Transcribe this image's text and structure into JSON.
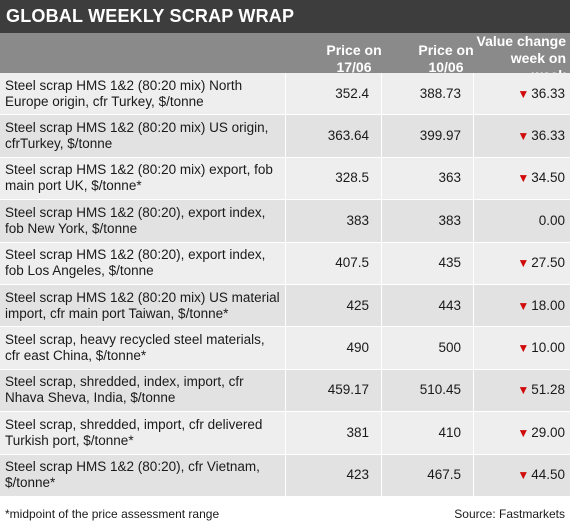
{
  "title": "GLOBAL WEEKLY SCRAP WRAP",
  "columns": {
    "price1": "Price on 17/06",
    "price2": "Price on 10/06",
    "change": "Value change week on week"
  },
  "rows": [
    {
      "desc": "Steel scrap HMS 1&2 (80:20 mix) North Europe origin, cfr Turkey, $/tonne",
      "p1": "352.4",
      "p2": "388.73",
      "change": "36.33",
      "down": true
    },
    {
      "desc": "Steel scrap HMS 1&2 (80:20 mix) US origin, cfrTurkey, $/tonne",
      "p1": "363.64",
      "p2": "399.97",
      "change": "36.33",
      "down": true
    },
    {
      "desc": "Steel scrap HMS 1&2 (80:20 mix) export, fob main port UK, $/tonne*",
      "p1": "328.5",
      "p2": "363",
      "change": "34.50",
      "down": true
    },
    {
      "desc": "Steel scrap HMS 1&2 (80:20), export index, fob New York, $/tonne",
      "p1": "383",
      "p2": "383",
      "change": "0.00",
      "down": false
    },
    {
      "desc": "Steel scrap HMS 1&2 (80:20), export index, fob Los Angeles, $/tonne",
      "p1": "407.5",
      "p2": "435",
      "change": "27.50",
      "down": true
    },
    {
      "desc": "Steel scrap HMS 1&2 (80:20 mix) US material import, cfr main port Taiwan, $/tonne*",
      "p1": "425",
      "p2": "443",
      "change": "18.00",
      "down": true
    },
    {
      "desc": "Steel scrap, heavy recycled steel materials, cfr east China, $/tonne*",
      "p1": "490",
      "p2": "500",
      "change": "10.00",
      "down": true
    },
    {
      "desc": "Steel scrap, shredded, index, import, cfr Nhava Sheva, India, $/tonne",
      "p1": "459.17",
      "p2": "510.45",
      "change": "51.28",
      "down": true
    },
    {
      "desc": "Steel scrap, shredded, import, cfr delivered Turkish port, $/tonne*",
      "p1": "381",
      "p2": "410",
      "change": "29.00",
      "down": true
    },
    {
      "desc": "Steel scrap HMS 1&2 (80:20), cfr Vietnam, $/tonne*",
      "p1": "423",
      "p2": "467.5",
      "change": "44.50",
      "down": true
    }
  ],
  "footer": {
    "note": "*midpoint of the price assessment range",
    "source": "Source: Fastmarkets"
  },
  "arrow_glyph": "▼",
  "colors": {
    "title_bg": "#3d3d3d",
    "header_bg": "#8a8a8a",
    "arrow": "#d10a0a"
  }
}
